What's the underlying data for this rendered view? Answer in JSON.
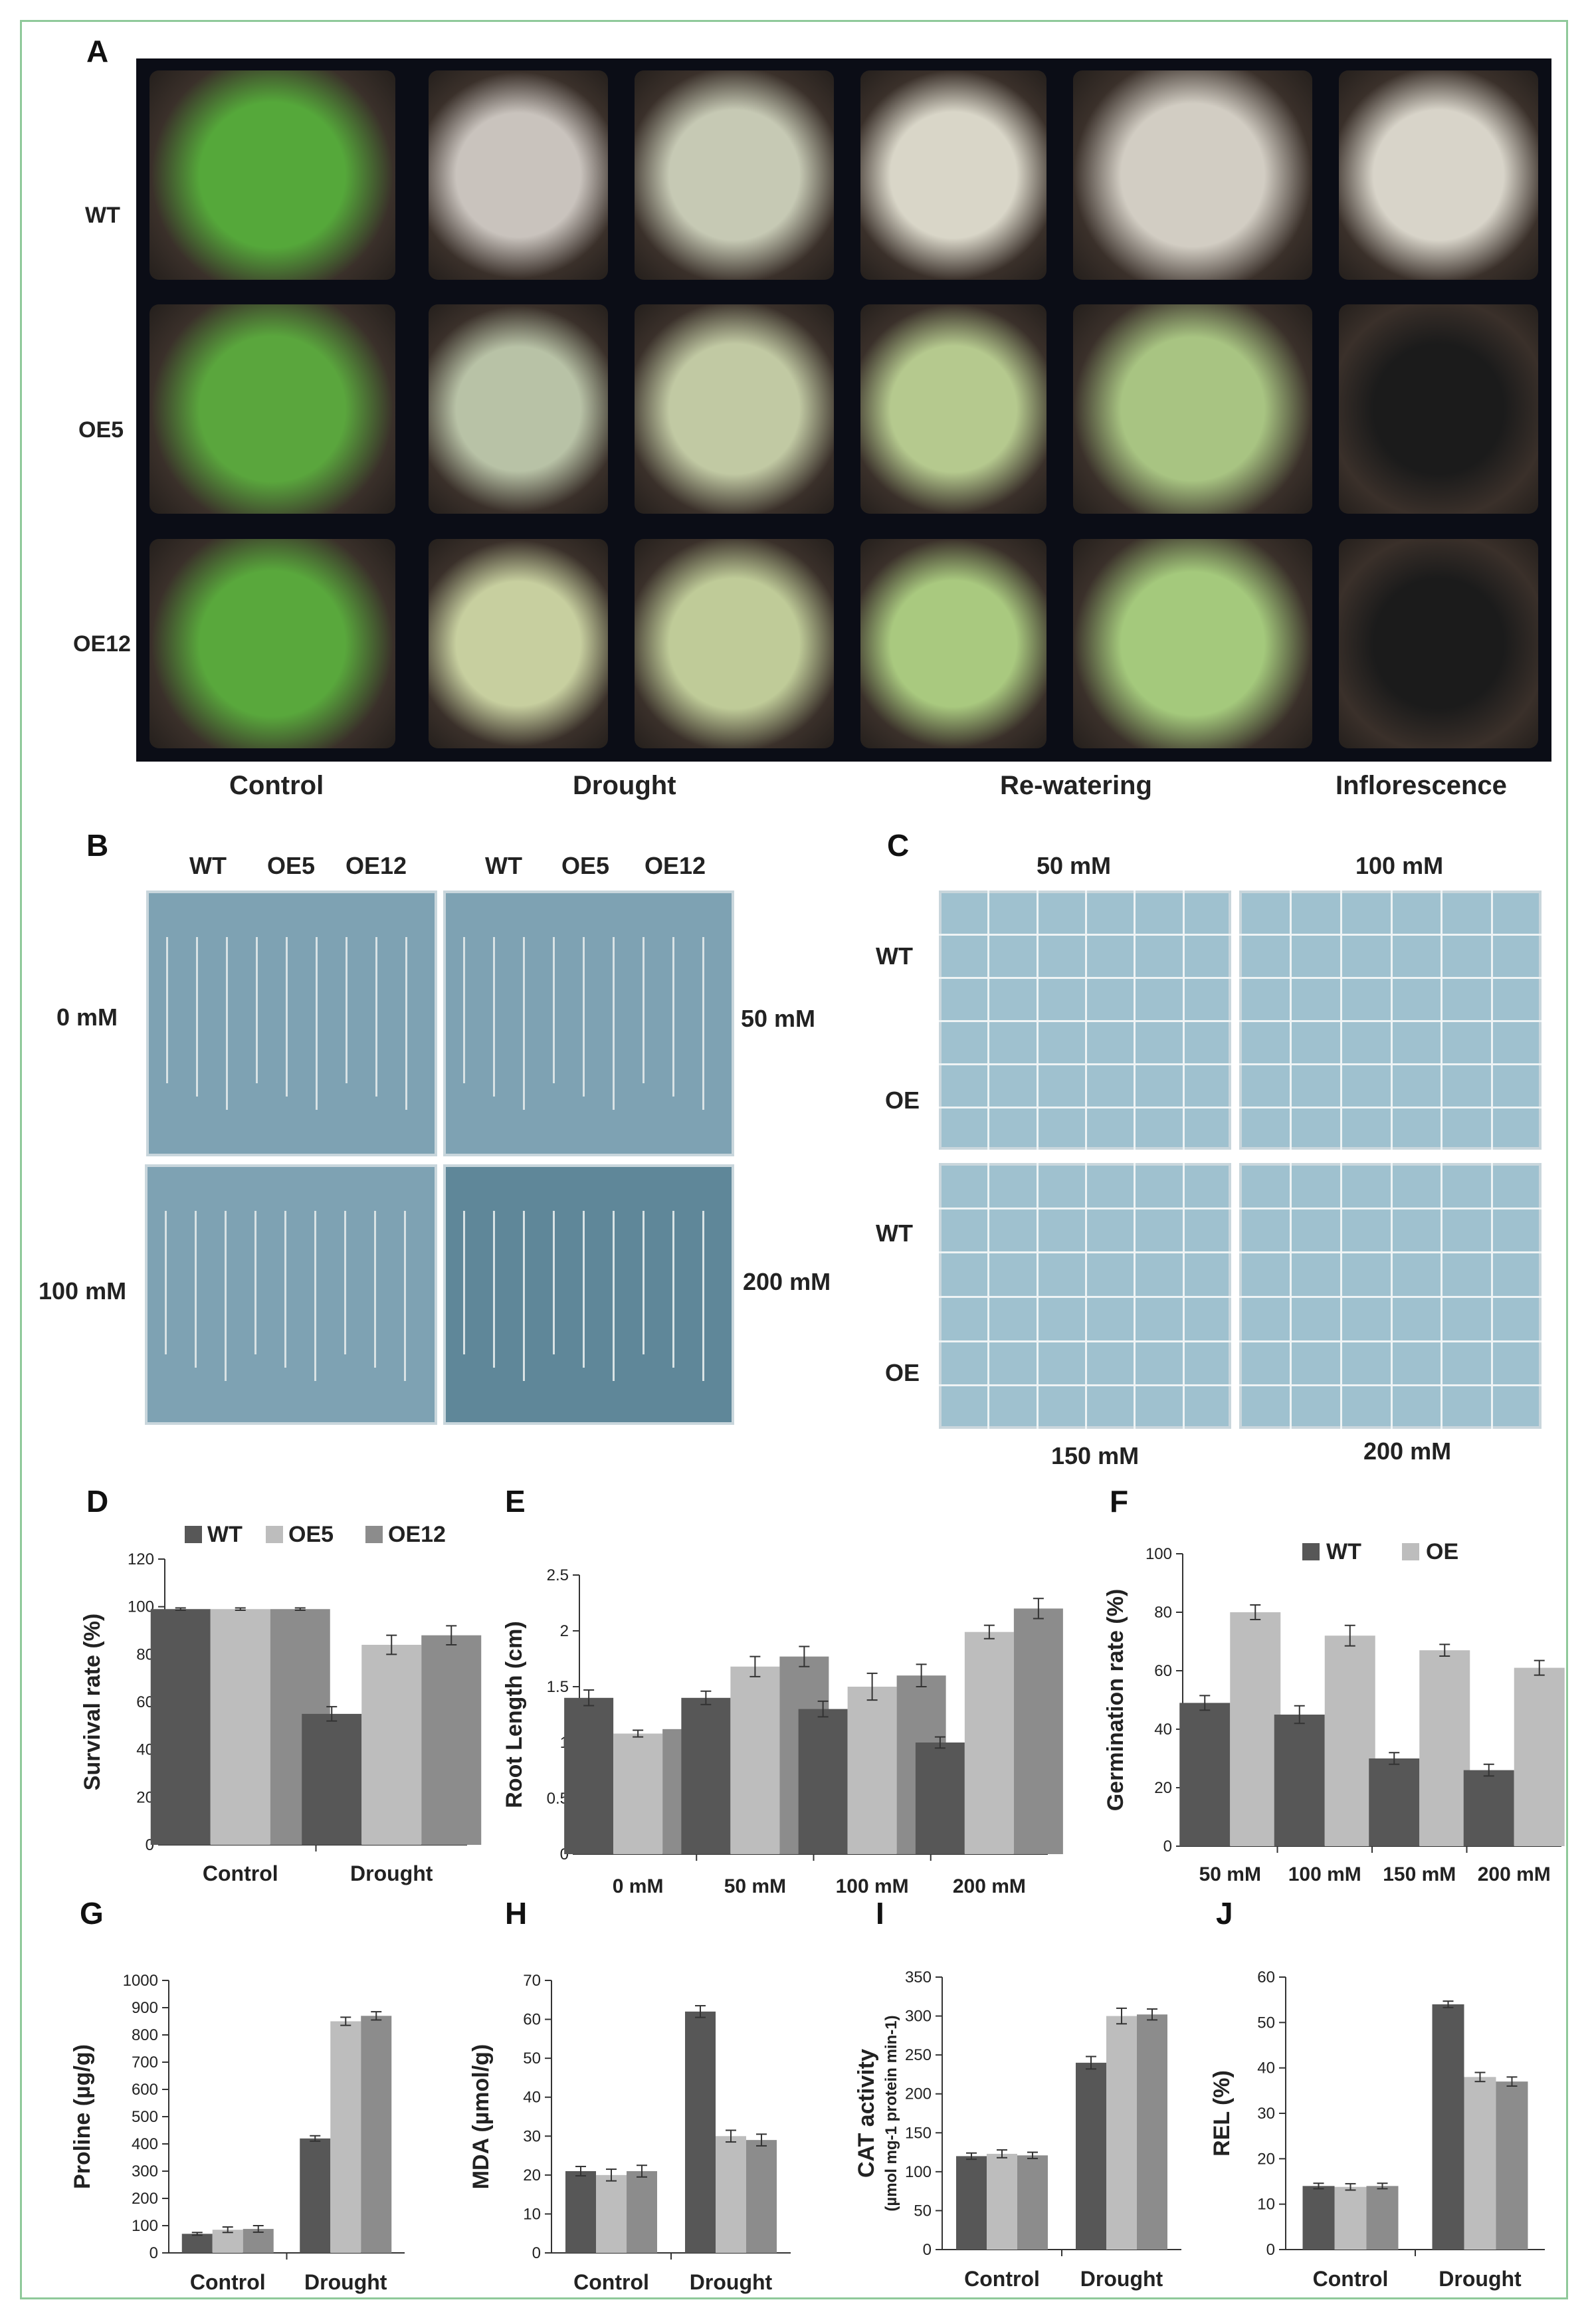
{
  "colors": {
    "wt": "#575757",
    "oe5": "#bdbdbd",
    "oe12": "#8c8c8c",
    "oe": "#bdbdbd",
    "frame": "#8fc99a"
  },
  "panels": {
    "A": {
      "letter": "A",
      "row_labels": [
        "WT",
        "OE5",
        "OE12"
      ],
      "col_labels": [
        "Control",
        "Drought",
        "Re-watering",
        "Inflorescence"
      ]
    },
    "B": {
      "letter": "B",
      "col_labels": [
        "WT",
        "OE5",
        "OE12"
      ],
      "conc_labels": [
        "0 mM",
        "50 mM",
        "100 mM",
        "200 mM"
      ]
    },
    "C": {
      "letter": "C",
      "conc_labels": [
        "50 mM",
        "100 mM",
        "150 mM",
        "200 mM"
      ],
      "row_labels": [
        "WT",
        "OE",
        "WT",
        "OE"
      ]
    }
  },
  "chart_data": [
    {
      "id": "D",
      "letter": "D",
      "type": "bar",
      "categories": [
        "Control",
        "Drought"
      ],
      "series": [
        {
          "name": "WT",
          "values": [
            99,
            55
          ],
          "errors": [
            0.5,
            3
          ]
        },
        {
          "name": "OE5",
          "values": [
            99,
            84
          ],
          "errors": [
            0.5,
            4
          ]
        },
        {
          "name": "OE12",
          "values": [
            99,
            88
          ],
          "errors": [
            0.5,
            4
          ]
        }
      ],
      "ylabel": "Survival rate (%)",
      "ylim": [
        0,
        120
      ],
      "yticks": [
        0,
        20,
        40,
        60,
        80,
        100,
        120
      ],
      "legend": "top"
    },
    {
      "id": "E",
      "letter": "E",
      "type": "bar",
      "categories": [
        "0 mM",
        "50 mM",
        "100 mM",
        "200 mM"
      ],
      "series": [
        {
          "values": [
            1.4,
            1.4,
            1.3,
            1.0
          ],
          "errors": [
            0.07,
            0.06,
            0.07,
            0.05
          ]
        },
        {
          "values": [
            1.08,
            1.68,
            1.5,
            1.99
          ],
          "errors": [
            0.03,
            0.09,
            0.12,
            0.06
          ]
        },
        {
          "values": [
            1.12,
            1.77,
            1.6,
            2.2
          ],
          "errors": [
            0.06,
            0.09,
            0.1,
            0.09
          ]
        }
      ],
      "ylabel": "Root Length (cm)",
      "ylim": [
        0,
        2.5
      ],
      "yticks": [
        0,
        0.5,
        1,
        1.5,
        2,
        2.5
      ],
      "yticklabels": [
        "0",
        "0.5",
        "1",
        "1.5",
        "2",
        "2.5"
      ]
    },
    {
      "id": "F",
      "letter": "F",
      "type": "bar",
      "categories": [
        "50 mM",
        "100 mM",
        "150 mM",
        "200 mM"
      ],
      "series": [
        {
          "name": "WT",
          "values": [
            49,
            45,
            30,
            26
          ],
          "errors": [
            2.5,
            3,
            2,
            2
          ]
        },
        {
          "name": "OE",
          "values": [
            80,
            72,
            67,
            61
          ],
          "errors": [
            2.5,
            3.5,
            2,
            2.5
          ]
        }
      ],
      "ylabel": "Germination rate (%)",
      "ylim": [
        0,
        100
      ],
      "yticks": [
        0,
        20,
        40,
        60,
        80,
        100
      ],
      "legend": "top"
    },
    {
      "id": "G",
      "letter": "G",
      "type": "bar",
      "categories": [
        "Control",
        "Drought"
      ],
      "series": [
        {
          "values": [
            70,
            420
          ],
          "errors": [
            5,
            10
          ]
        },
        {
          "values": [
            85,
            850
          ],
          "errors": [
            10,
            15
          ]
        },
        {
          "values": [
            88,
            870
          ],
          "errors": [
            12,
            15
          ]
        }
      ],
      "ylabel": "Proline (µg/g)",
      "ylim": [
        0,
        1000
      ],
      "yticks": [
        0,
        100,
        200,
        300,
        400,
        500,
        600,
        700,
        800,
        900,
        1000
      ]
    },
    {
      "id": "H",
      "letter": "H",
      "type": "bar",
      "categories": [
        "Control",
        "Drought"
      ],
      "series": [
        {
          "values": [
            21,
            62
          ],
          "errors": [
            1.2,
            1.5
          ]
        },
        {
          "values": [
            20,
            30
          ],
          "errors": [
            1.5,
            1.5
          ]
        },
        {
          "values": [
            21,
            29
          ],
          "errors": [
            1.5,
            1.5
          ]
        }
      ],
      "ylabel": "MDA (µmol/g)",
      "ylim": [
        0,
        70
      ],
      "yticks": [
        0,
        10,
        20,
        30,
        40,
        50,
        60,
        70
      ]
    },
    {
      "id": "I",
      "letter": "I",
      "type": "bar",
      "categories": [
        "Control",
        "Drought"
      ],
      "series": [
        {
          "values": [
            120,
            240
          ],
          "errors": [
            4,
            8
          ]
        },
        {
          "values": [
            123,
            300
          ],
          "errors": [
            5,
            10
          ]
        },
        {
          "values": [
            121,
            302
          ],
          "errors": [
            4,
            7
          ]
        }
      ],
      "ylabel": "CAT activity",
      "ylabel2": "(µmol mg-1 protein min-1)",
      "ylim": [
        0,
        350
      ],
      "yticks": [
        0,
        50,
        100,
        150,
        200,
        250,
        300,
        350
      ]
    },
    {
      "id": "J",
      "letter": "J",
      "type": "bar",
      "categories": [
        "Control",
        "Drought"
      ],
      "series": [
        {
          "values": [
            14,
            54
          ],
          "errors": [
            0.6,
            0.7
          ]
        },
        {
          "values": [
            13.8,
            38
          ],
          "errors": [
            0.7,
            1
          ]
        },
        {
          "values": [
            14,
            37
          ],
          "errors": [
            0.6,
            1
          ]
        }
      ],
      "ylabel": "REL (%)",
      "ylim": [
        0,
        60
      ],
      "yticks": [
        0,
        10,
        20,
        30,
        40,
        50,
        60
      ]
    }
  ]
}
